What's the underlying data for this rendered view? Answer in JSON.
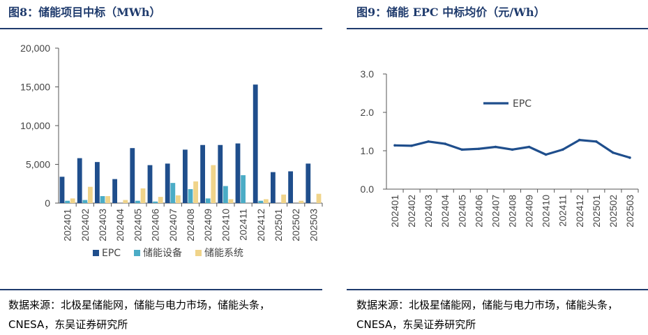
{
  "left_panel": {
    "title": "图8：储能项目中标（MWh）",
    "source": "数据来源：北极星储能网，储能与电力市场，储能头条，CNESA，东吴证券研究所"
  },
  "right_panel": {
    "title": "图9：储能 EPC 中标均价（元/Wh）",
    "source": "数据来源：北极星储能网，储能与电力市场，储能头条，CNESA，东吴证券研究所"
  },
  "chart_data": [
    {
      "type": "bar",
      "title": "图8：储能项目中标（MWh）",
      "categories": [
        "202401",
        "202402",
        "202403",
        "202404",
        "202405",
        "202406",
        "202407",
        "202408",
        "202409",
        "202410",
        "202411",
        "202412",
        "202501",
        "202502",
        "202503"
      ],
      "series": [
        {
          "name": "EPC",
          "color": "#1f4e8c",
          "values": [
            3400,
            5800,
            5300,
            3100,
            7100,
            4900,
            5100,
            6900,
            7500,
            7500,
            7700,
            15300,
            4000,
            4100,
            5100
          ]
        },
        {
          "name": "储能设备",
          "color": "#4bacc6",
          "values": [
            300,
            400,
            900,
            0,
            300,
            200,
            2600,
            1800,
            600,
            2200,
            3600,
            300,
            0,
            0,
            0
          ]
        },
        {
          "name": "储能系统",
          "color": "#f0d48a",
          "values": [
            600,
            2100,
            900,
            400,
            1900,
            800,
            1000,
            2800,
            4900,
            500,
            0,
            500,
            1100,
            300,
            1200
          ]
        }
      ],
      "y_ticks": [
        "0",
        "5,000",
        "10,000",
        "15,000",
        "20,000"
      ],
      "ylim": [
        0,
        20000
      ],
      "xlabel": "",
      "ylabel": "",
      "legend_position": "bottom",
      "grid": false
    },
    {
      "type": "line",
      "title": "图9：储能 EPC 中标均价（元/Wh）",
      "categories": [
        "202401",
        "202402",
        "202403",
        "202404",
        "202405",
        "202406",
        "202407",
        "202408",
        "202409",
        "202410",
        "202411",
        "202412",
        "202501",
        "202502",
        "202503"
      ],
      "series": [
        {
          "name": "EPC",
          "color": "#1f4e8c",
          "values": [
            1.14,
            1.13,
            1.24,
            1.18,
            1.03,
            1.05,
            1.1,
            1.03,
            1.1,
            0.9,
            1.03,
            1.28,
            1.24,
            0.95,
            0.82
          ]
        }
      ],
      "y_ticks": [
        "0.0",
        "1.0",
        "2.0",
        "3.0"
      ],
      "ylim": [
        0,
        3.0
      ],
      "xlabel": "",
      "ylabel": "",
      "legend_position": "inside-top-left",
      "grid": false
    }
  ]
}
